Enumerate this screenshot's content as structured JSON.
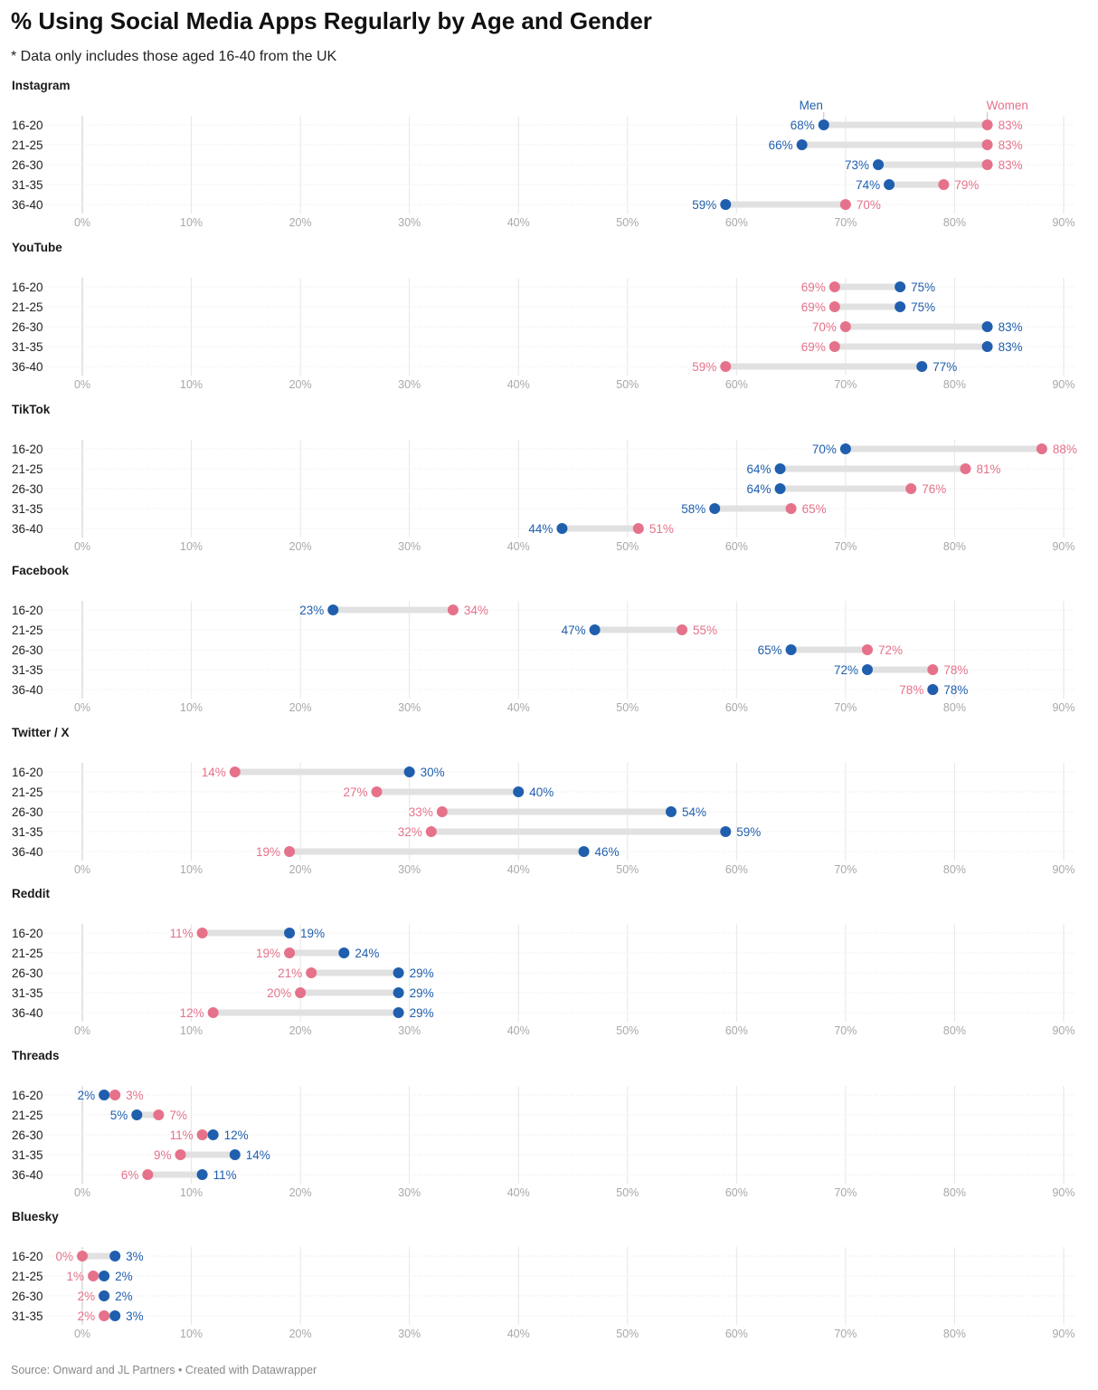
{
  "title": "% Using Social Media Apps Regularly by Age and Gender",
  "subtitle": "* Data only includes those aged 16-40 from the UK",
  "source": "Source: Onward and JL Partners • Created with Datawrapper",
  "colors": {
    "men": "#1f5fae",
    "women": "#e5728a",
    "connector": "#e1e1e1",
    "grid": "#e6e6e6",
    "axis": "#c8c8c8",
    "ticks": "#a8a8a8"
  },
  "chart_data": {
    "type": "dot-range",
    "legend": {
      "men": "Men",
      "women": "Women",
      "placement": "above first panel"
    },
    "xlim": [
      0,
      90
    ],
    "ticks": [
      "0%",
      "10%",
      "20%",
      "30%",
      "40%",
      "50%",
      "60%",
      "70%",
      "80%",
      "90%"
    ],
    "tick_values": [
      0,
      10,
      20,
      30,
      40,
      50,
      60,
      70,
      80,
      90
    ],
    "grid": true,
    "panels": [
      {
        "name": "Instagram",
        "categories": [
          "16-20",
          "21-25",
          "26-30",
          "31-35",
          "36-40"
        ],
        "men": [
          68,
          66,
          73,
          74,
          59
        ],
        "women": [
          83,
          83,
          83,
          79,
          70
        ]
      },
      {
        "name": "YouTube",
        "categories": [
          "16-20",
          "21-25",
          "26-30",
          "31-35",
          "36-40"
        ],
        "men": [
          75,
          75,
          83,
          83,
          77
        ],
        "women": [
          69,
          69,
          70,
          69,
          59
        ]
      },
      {
        "name": "TikTok",
        "categories": [
          "16-20",
          "21-25",
          "26-30",
          "31-35",
          "36-40"
        ],
        "men": [
          70,
          64,
          64,
          58,
          44
        ],
        "women": [
          88,
          81,
          76,
          65,
          51
        ]
      },
      {
        "name": "Facebook",
        "categories": [
          "16-20",
          "21-25",
          "26-30",
          "31-35",
          "36-40"
        ],
        "men": [
          23,
          47,
          65,
          72,
          78
        ],
        "women": [
          34,
          55,
          72,
          78,
          78
        ]
      },
      {
        "name": "Twitter / X",
        "categories": [
          "16-20",
          "21-25",
          "26-30",
          "31-35",
          "36-40"
        ],
        "men": [
          30,
          40,
          54,
          59,
          46
        ],
        "women": [
          14,
          27,
          33,
          32,
          19
        ]
      },
      {
        "name": "Reddit",
        "categories": [
          "16-20",
          "21-25",
          "26-30",
          "31-35",
          "36-40"
        ],
        "men": [
          19,
          24,
          29,
          29,
          29
        ],
        "women": [
          11,
          19,
          21,
          20,
          12
        ]
      },
      {
        "name": "Threads",
        "categories": [
          "16-20",
          "21-25",
          "26-30",
          "31-35",
          "36-40"
        ],
        "men": [
          2,
          5,
          12,
          14,
          11
        ],
        "women": [
          3,
          7,
          11,
          9,
          6
        ]
      },
      {
        "name": "Bluesky",
        "categories": [
          "16-20",
          "21-25",
          "26-30",
          "31-35"
        ],
        "men": [
          3,
          2,
          2,
          3
        ],
        "women": [
          0,
          1,
          2,
          2
        ]
      }
    ]
  }
}
